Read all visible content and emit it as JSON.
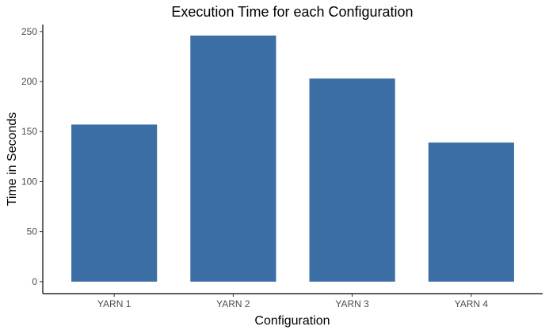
{
  "chart_data": {
    "type": "bar",
    "title": "Execution Time for each Configuration",
    "xlabel": "Configuration",
    "ylabel": "Time in Seconds",
    "categories": [
      "YARN 1",
      "YARN 2",
      "YARN 3",
      "YARN 4"
    ],
    "values": [
      157,
      246,
      203,
      139
    ],
    "ylim": [
      -12,
      257
    ],
    "yticks": [
      0,
      50,
      100,
      150,
      200,
      250
    ],
    "bar_color": "#3A6EA5",
    "grid": false,
    "legend": "none"
  }
}
